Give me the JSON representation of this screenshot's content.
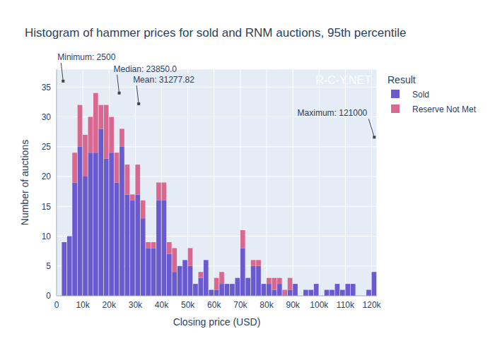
{
  "chart_data": {
    "type": "histogram",
    "title": "Histogram of hammer prices for sold and RNM auctions, 95th percentile",
    "x_label": "Closing price (USD)",
    "y_label": "Number of auctions",
    "watermark": "R-C-Y.NET",
    "legend_title": "Result",
    "legend": "right",
    "stacked": true,
    "grid": true,
    "bins": [
      2000,
      4000,
      6000,
      8000,
      10000,
      12000,
      14000,
      16000,
      18000,
      20000,
      22000,
      24000,
      26000,
      28000,
      30000,
      32000,
      34000,
      36000,
      38000,
      40000,
      42000,
      44000,
      46000,
      48000,
      50000,
      52000,
      54000,
      56000,
      58000,
      60000,
      62000,
      64000,
      66000,
      68000,
      70000,
      72000,
      74000,
      76000,
      78000,
      80000,
      82000,
      84000,
      86000,
      88000,
      90000,
      92000,
      94000,
      96000,
      98000,
      100000,
      102000,
      104000,
      106000,
      108000,
      110000,
      112000,
      114000,
      116000,
      118000,
      120000,
      122000
    ],
    "series": [
      {
        "name": "Sold",
        "color": "#6a5acd",
        "values": [
          9,
          10,
          19,
          25,
          20,
          24,
          24,
          28,
          23,
          24,
          19,
          25,
          17,
          16,
          17,
          13,
          8,
          8,
          16,
          16,
          7,
          4,
          5,
          6,
          5,
          2,
          3,
          6,
          1,
          1,
          2,
          2,
          2,
          3,
          8,
          3,
          5,
          5,
          2,
          2,
          1,
          2,
          0,
          1,
          2,
          0,
          1,
          1,
          2,
          0,
          1,
          1,
          2,
          1,
          2,
          2,
          0,
          0,
          1,
          4
        ]
      },
      {
        "name": "Reserve Not Met",
        "color": "#d8688f",
        "values": [
          0,
          0,
          5,
          7,
          7,
          6,
          10,
          4,
          9,
          6,
          5,
          3,
          5,
          1,
          5,
          3,
          1,
          1,
          3,
          3,
          2,
          4,
          0,
          0,
          3,
          0,
          1,
          0,
          0,
          2,
          2,
          0,
          0,
          0,
          3,
          0,
          1,
          1,
          0,
          1,
          2,
          1,
          1,
          2,
          0,
          0,
          0,
          0,
          0,
          0,
          0,
          0,
          0,
          0,
          0,
          0,
          0,
          0,
          0,
          0
        ]
      }
    ],
    "xlim": [
      0,
      122000
    ],
    "xticks": [
      0,
      {
        "value": 10000,
        "label": "10k"
      },
      {
        "value": 20000,
        "label": "20k"
      },
      {
        "value": 30000,
        "label": "30k"
      },
      {
        "value": 40000,
        "label": "40k"
      },
      {
        "value": 50000,
        "label": "50k"
      },
      {
        "value": 60000,
        "label": "60k"
      },
      {
        "value": 70000,
        "label": "70k"
      },
      {
        "value": 80000,
        "label": "80k"
      },
      {
        "value": 90000,
        "label": "90k"
      },
      {
        "value": 100000,
        "label": "100k"
      },
      {
        "value": 110000,
        "label": "110k"
      },
      {
        "value": 120000,
        "label": "120k"
      }
    ],
    "ylim": [
      0,
      38
    ],
    "yticks": [
      0,
      5,
      10,
      15,
      20,
      25,
      30,
      35
    ],
    "annotations": [
      {
        "text": "Minimum: 2500",
        "x": 2500,
        "y": 36
      },
      {
        "text": "Median: 23850.0",
        "x": 23850,
        "y": 34
      },
      {
        "text": "Mean: 31277.82",
        "x": 31277.82,
        "y": 32.2
      },
      {
        "text": "Maximum: 121000",
        "x": 121000,
        "y": 26.6
      }
    ]
  }
}
